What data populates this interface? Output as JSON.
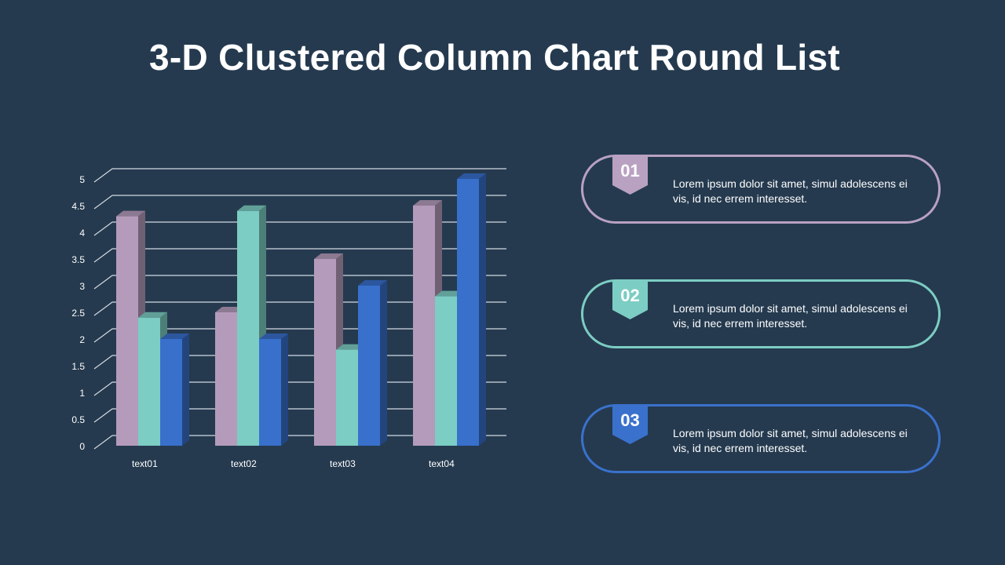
{
  "title": "3-D Clustered Column Chart Round List",
  "chart_data": {
    "type": "bar",
    "categories": [
      "text01",
      "text02",
      "text03",
      "text04"
    ],
    "series": [
      {
        "values": [
          4.3,
          2.5,
          3.5,
          4.5
        ],
        "color": "#b49bbb"
      },
      {
        "values": [
          2.4,
          4.4,
          1.8,
          2.8
        ],
        "color": "#7ccdc3"
      },
      {
        "values": [
          2.0,
          2.0,
          3.0,
          5.0
        ],
        "color": "#3870cc"
      }
    ],
    "ylim": [
      0,
      5
    ],
    "yticks": [
      "0",
      "0.5",
      "1",
      "1.5",
      "2",
      "2.5",
      "3",
      "3.5",
      "4",
      "4.5",
      "5"
    ],
    "grid": true
  },
  "list": [
    {
      "number": "01",
      "text": "Lorem ipsum dolor sit amet, simul adolescens ei vis, id nec errem  interesset.",
      "color": "#b9a1c2"
    },
    {
      "number": "02",
      "text": "Lorem ipsum dolor sit amet, simul adolescens ei vis, id nec errem  interesset.",
      "color": "#7ccdc3"
    },
    {
      "number": "03",
      "text": "Lorem ipsum dolor sit amet, simul adolescens ei vis, id nec errem  interesset.",
      "color": "#3a71cd"
    }
  ]
}
